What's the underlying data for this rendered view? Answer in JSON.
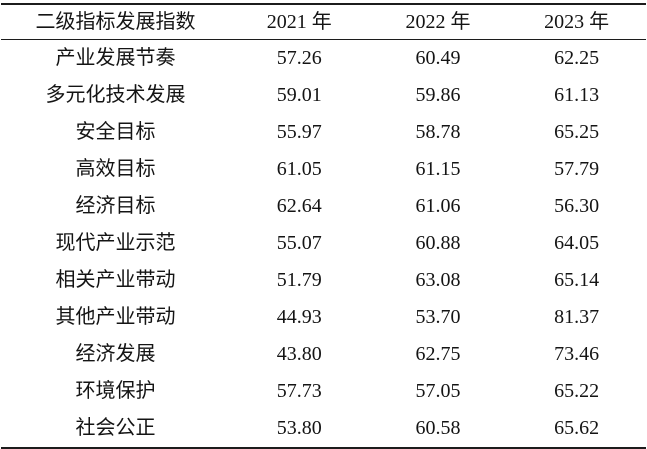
{
  "table": {
    "header": [
      "二级指标发展指数",
      "2021 年",
      "2022 年",
      "2023 年"
    ],
    "rows": [
      [
        "产业发展节奏",
        "57.26",
        "60.49",
        "62.25"
      ],
      [
        "多元化技术发展",
        "59.01",
        "59.86",
        "61.13"
      ],
      [
        "安全目标",
        "55.97",
        "58.78",
        "65.25"
      ],
      [
        "高效目标",
        "61.05",
        "61.15",
        "57.79"
      ],
      [
        "经济目标",
        "62.64",
        "61.06",
        "56.30"
      ],
      [
        "现代产业示范",
        "55.07",
        "60.88",
        "64.05"
      ],
      [
        "相关产业带动",
        "51.79",
        "63.08",
        "65.14"
      ],
      [
        "其他产业带动",
        "44.93",
        "53.70",
        "81.37"
      ],
      [
        "经济发展",
        "43.80",
        "62.75",
        "73.46"
      ],
      [
        "环境保护",
        "57.73",
        "57.05",
        "65.22"
      ],
      [
        "社会公正",
        "53.80",
        "60.58",
        "65.62"
      ]
    ]
  },
  "chart_data": {
    "type": "table",
    "title": "二级指标发展指数",
    "columns": [
      "2021年",
      "2022年",
      "2023年"
    ],
    "categories": [
      "产业发展节奏",
      "多元化技术发展",
      "安全目标",
      "高效目标",
      "经济目标",
      "现代产业示范",
      "相关产业带动",
      "其他产业带动",
      "经济发展",
      "环境保护",
      "社会公正"
    ],
    "series": [
      {
        "name": "2021年",
        "values": [
          57.26,
          59.01,
          55.97,
          61.05,
          62.64,
          55.07,
          51.79,
          44.93,
          43.8,
          57.73,
          53.8
        ]
      },
      {
        "name": "2022年",
        "values": [
          60.49,
          59.86,
          58.78,
          61.15,
          61.06,
          60.88,
          63.08,
          53.7,
          62.75,
          57.05,
          60.58
        ]
      },
      {
        "name": "2023年",
        "values": [
          62.25,
          61.13,
          65.25,
          57.79,
          56.3,
          64.05,
          65.14,
          81.37,
          73.46,
          65.22,
          65.62
        ]
      }
    ],
    "layout": {
      "style": "three-line booktabs table",
      "text_color": "#141414",
      "border_color": "#1c1c1c",
      "background": "#ffffff"
    }
  }
}
